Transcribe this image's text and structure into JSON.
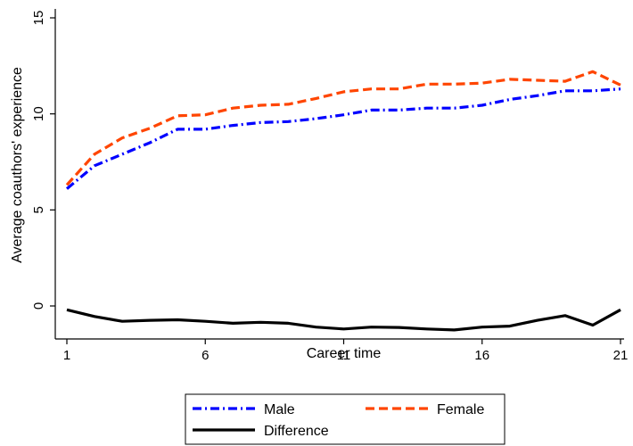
{
  "chart_data": {
    "type": "line",
    "title": "",
    "xlabel": "Career time",
    "ylabel": "Average coauthors' experience",
    "x": [
      1,
      2,
      3,
      4,
      5,
      6,
      7,
      8,
      9,
      10,
      11,
      12,
      13,
      14,
      15,
      16,
      17,
      18,
      19,
      20,
      21
    ],
    "xlim": [
      1,
      21
    ],
    "ylim": [
      -1.3,
      15.2
    ],
    "xticks": [
      1,
      6,
      11,
      16,
      21
    ],
    "yticks": [
      0,
      5,
      10,
      15
    ],
    "grid": false,
    "legend_position": "bottom",
    "series": [
      {
        "name": "Male",
        "color": "#0000ff",
        "style": "dash-dot",
        "values": [
          6.1,
          7.3,
          7.9,
          8.5,
          9.2,
          9.2,
          9.4,
          9.55,
          9.6,
          9.75,
          9.95,
          10.2,
          10.2,
          10.3,
          10.3,
          10.45,
          10.75,
          10.95,
          11.2,
          11.2,
          11.3
        ]
      },
      {
        "name": "Female",
        "color": "#ff4500",
        "style": "dashed",
        "values": [
          6.3,
          7.9,
          8.75,
          9.25,
          9.9,
          9.95,
          10.3,
          10.45,
          10.5,
          10.8,
          11.15,
          11.3,
          11.3,
          11.55,
          11.55,
          11.6,
          11.8,
          11.75,
          11.7,
          12.2,
          11.5
        ]
      },
      {
        "name": "Difference",
        "color": "#000000",
        "style": "solid",
        "values": [
          -0.2,
          -0.55,
          -0.8,
          -0.75,
          -0.72,
          -0.8,
          -0.9,
          -0.85,
          -0.9,
          -1.1,
          -1.2,
          -1.1,
          -1.12,
          -1.2,
          -1.25,
          -1.1,
          -1.05,
          -0.75,
          -0.5,
          -1.0,
          -0.2
        ]
      }
    ]
  }
}
